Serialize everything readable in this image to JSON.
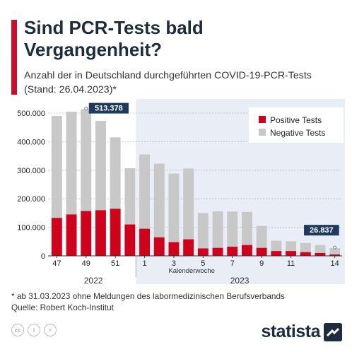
{
  "title": "Sind PCR-Tests bald Vergangenheit?",
  "subtitle": "Anzahl der in Deutschland durchgeführten COVID-19-PCR-Tests (Stand: 26.04.2023)*",
  "footnote": "* ab 31.03.2023 ohne Meldungen des labormedizinischen Berufsverbands",
  "source": "Quelle: Robert Koch-Institut",
  "brand": "statista",
  "colors": {
    "positive": "#d0021b",
    "negative": "#c8c8c8",
    "shade2023": "#e8edf6",
    "callout": "#1e3a5f",
    "title": "#1e2d3d"
  },
  "chart_data": {
    "type": "bar",
    "stacked": true,
    "categories": [
      "47",
      "48",
      "49",
      "50",
      "51",
      "52",
      "1",
      "2",
      "3",
      "4",
      "5",
      "6",
      "7",
      "8",
      "9",
      "10",
      "11",
      "12",
      "13",
      "14"
    ],
    "series": [
      {
        "name": "Positive Tests",
        "values": [
          133000,
          145000,
          157000,
          160000,
          165000,
          110000,
          95000,
          65000,
          48000,
          58000,
          26000,
          28000,
          32000,
          38000,
          28000,
          17000,
          17000,
          13000,
          10000,
          5000
        ]
      },
      {
        "name": "Negative Tests",
        "values": [
          357000,
          360000,
          356378,
          313000,
          250000,
          197000,
          260000,
          258000,
          240000,
          248000,
          124000,
          128000,
          123000,
          116000,
          77000,
          36000,
          34000,
          32000,
          28000,
          21837
        ]
      }
    ],
    "tick_labels_x": [
      "47",
      "49",
      "51",
      "1",
      "3",
      "5",
      "7",
      "9",
      "11",
      "14"
    ],
    "year_labels": [
      "2022",
      "2023"
    ],
    "xlabel": "Kalenderwoche",
    "ylabel": "",
    "ylim": [
      0,
      500000
    ],
    "yticks": [
      "0",
      "100.000",
      "200.000",
      "300.000",
      "400.000",
      "500.000"
    ],
    "annotations": [
      {
        "category": "49",
        "label": "513.378"
      },
      {
        "category": "14",
        "label": "26.837"
      }
    ],
    "legend": {
      "placement": "top-right",
      "entries": [
        "Positive Tests",
        "Negative Tests"
      ]
    },
    "grid": true
  }
}
